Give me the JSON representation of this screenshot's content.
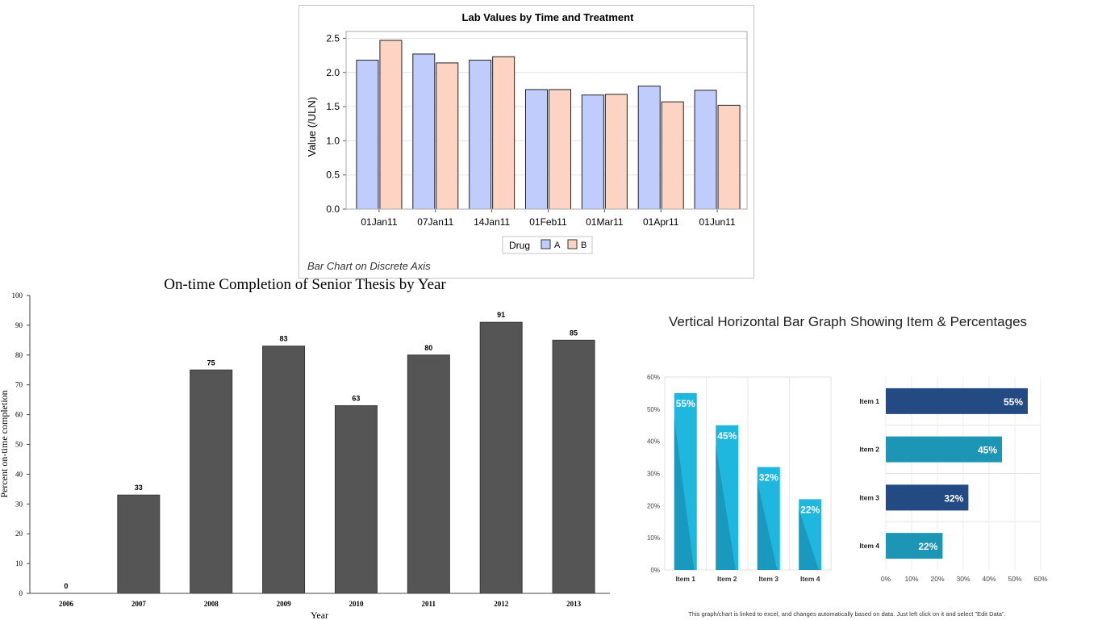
{
  "chart_data": [
    {
      "id": "lab",
      "type": "bar",
      "title": "Lab Values by Time and Treatment",
      "subtitle": "Bar Chart on Discrete Axis",
      "xlabel": "",
      "ylabel": "Value (/ULN)",
      "ylim": [
        0,
        2.6
      ],
      "yticks": [
        "0.0",
        "0.5",
        "1.0",
        "1.5",
        "2.0",
        "2.5"
      ],
      "grid": true,
      "categories": [
        "01Jan11",
        "07Jan11",
        "14Jan11",
        "01Feb11",
        "01Mar11",
        "01Apr11",
        "01Jun11"
      ],
      "legend_title": "Drug",
      "legend_position": "bottom",
      "series": [
        {
          "name": "A",
          "color": "#c0ccfc",
          "values": [
            2.18,
            2.27,
            2.18,
            1.75,
            1.67,
            1.8,
            1.74
          ]
        },
        {
          "name": "B",
          "color": "#fdd4c3",
          "values": [
            2.47,
            2.14,
            2.23,
            1.75,
            1.68,
            1.57,
            1.52
          ]
        }
      ]
    },
    {
      "id": "thesis",
      "type": "bar",
      "title": "On-time Completion of Senior Thesis by Year",
      "xlabel": "Year",
      "ylabel": "Percent on-time completion",
      "ylim": [
        0,
        100
      ],
      "yticks": [
        "0",
        "10",
        "20",
        "30",
        "40",
        "50",
        "60",
        "70",
        "80",
        "90",
        "100"
      ],
      "bar_color": "#555555",
      "categories": [
        "2006",
        "2007",
        "2008",
        "2009",
        "2010",
        "2011",
        "2012",
        "2013"
      ],
      "values": [
        0,
        33,
        75,
        83,
        63,
        80,
        91,
        85
      ],
      "data_labels": [
        "0",
        "33",
        "75",
        "83",
        "63",
        "80",
        "91",
        "85"
      ]
    },
    {
      "id": "items-vertical",
      "type": "bar",
      "title": "Vertical Horizontal Bar Graph Showing Item & Percentages",
      "ylim": [
        0,
        60
      ],
      "yticks": [
        "0%",
        "10%",
        "20%",
        "30%",
        "40%",
        "50%",
        "60%"
      ],
      "bar_color": "#1fb7dd",
      "shadow_color": "#1a8fb3",
      "categories": [
        "Item 1",
        "Item 2",
        "Item 3",
        "Item 4"
      ],
      "values": [
        55,
        45,
        32,
        22
      ],
      "data_labels": [
        "55%",
        "45%",
        "32%",
        "22%"
      ]
    },
    {
      "id": "items-horizontal",
      "type": "bar",
      "orientation": "horizontal",
      "xlim": [
        0,
        60
      ],
      "xticks": [
        "0%",
        "10%",
        "20%",
        "30%",
        "40%",
        "50%",
        "60%"
      ],
      "colors": [
        "#234a82",
        "#1d95b4",
        "#234a82",
        "#1d95b4"
      ],
      "categories": [
        "Item 1",
        "Item 2",
        "Item 3",
        "Item 4"
      ],
      "values": [
        55,
        45,
        32,
        22
      ],
      "data_labels": [
        "55%",
        "45%",
        "32%",
        "22%"
      ]
    }
  ],
  "footnote": "This graph/chart is linked to excel, and changes automatically based on data. Just left click on it and select \"Edit Data\"."
}
